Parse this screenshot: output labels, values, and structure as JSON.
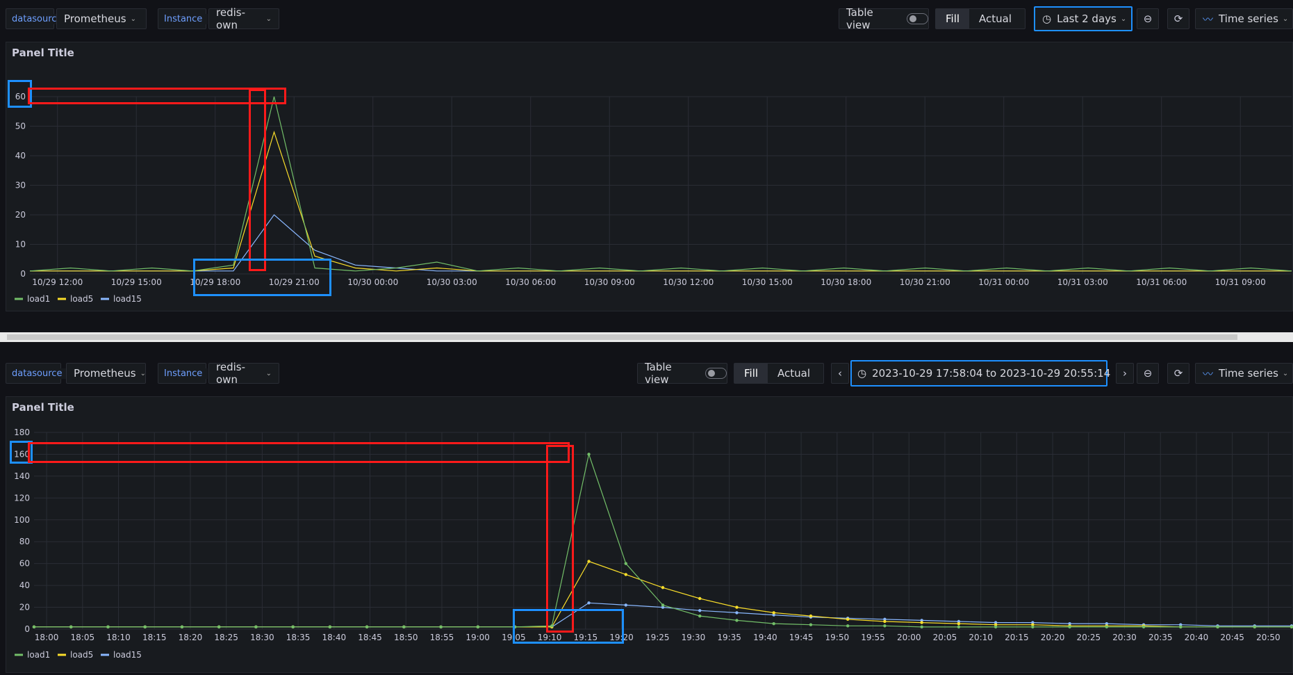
{
  "colors": {
    "load1": "#73bf69",
    "load5": "#fade2a",
    "load15": "#8ab8ff",
    "accent": "#6e9fff",
    "grid": "#2a2d35",
    "highlight_red": "#ff1a1a",
    "highlight_blue": "#1e90ff"
  },
  "top": {
    "datasource_label": "datasource",
    "datasource_value": "Prometheus",
    "instance_label": "Instance",
    "instance_value": "redis-own",
    "table_view": "Table view",
    "fill": "Fill",
    "actual": "Actual",
    "time_range": "Last 2 days",
    "viz": "Time series",
    "panel_title": "Panel Title",
    "legend": [
      "load1",
      "load5",
      "load15"
    ]
  },
  "bottom": {
    "datasource_label": "datasource",
    "datasource_value": "Prometheus",
    "instance_label": "Instance",
    "instance_value": "redis-own",
    "table_view": "Table view",
    "fill": "Fill",
    "actual": "Actual",
    "time_range": "2023-10-29 17:58:04 to 2023-10-29 20:55:14",
    "viz": "Time series",
    "panel_title": "Panel Title",
    "legend": [
      "load1",
      "load5",
      "load15"
    ]
  },
  "chart_data": [
    {
      "type": "line",
      "x_ticks": [
        "10/29 12:00",
        "10/29 15:00",
        "10/29 18:00",
        "10/29 21:00",
        "10/30 00:00",
        "10/30 03:00",
        "10/30 06:00",
        "10/30 09:00",
        "10/30 12:00",
        "10/30 15:00",
        "10/30 18:00",
        "10/30 21:00",
        "10/31 00:00",
        "10/31 03:00",
        "10/31 06:00",
        "10/31 09:00"
      ],
      "y_ticks": [
        0,
        10,
        20,
        30,
        40,
        50,
        60
      ],
      "ylim": [
        0,
        60
      ],
      "series": [
        {
          "name": "load1",
          "values": [
            1,
            2,
            1,
            2,
            1,
            3,
            60,
            2,
            1,
            2,
            4,
            1,
            2,
            1,
            2,
            1,
            2,
            1,
            2,
            1,
            2,
            1,
            2,
            1,
            2,
            1,
            2,
            1,
            2,
            1,
            2,
            1
          ]
        },
        {
          "name": "load5",
          "values": [
            1,
            1,
            1,
            1,
            1,
            2,
            48,
            6,
            2,
            1,
            2,
            1,
            1,
            1,
            1,
            1,
            1,
            1,
            1,
            1,
            1,
            1,
            1,
            1,
            1,
            1,
            1,
            1,
            1,
            1,
            1,
            1
          ]
        },
        {
          "name": "load15",
          "values": [
            1,
            1,
            1,
            1,
            1,
            1,
            20,
            8,
            3,
            2,
            1,
            1,
            1,
            1,
            1,
            1,
            1,
            1,
            1,
            1,
            1,
            1,
            1,
            1,
            1,
            1,
            1,
            1,
            1,
            1,
            1,
            1
          ]
        }
      ],
      "legend": "bottom-left"
    },
    {
      "type": "line",
      "x_ticks": [
        "18:00",
        "18:05",
        "18:10",
        "18:15",
        "18:20",
        "18:25",
        "18:30",
        "18:35",
        "18:40",
        "18:45",
        "18:50",
        "18:55",
        "19:00",
        "19:05",
        "19:10",
        "19:15",
        "19:20",
        "19:25",
        "19:30",
        "19:35",
        "19:40",
        "19:45",
        "19:50",
        "19:55",
        "20:00",
        "20:05",
        "20:10",
        "20:15",
        "20:20",
        "20:25",
        "20:30",
        "20:35",
        "20:40",
        "20:45",
        "20:50"
      ],
      "y_ticks": [
        0,
        20,
        40,
        60,
        80,
        100,
        120,
        140,
        160,
        180
      ],
      "ylim": [
        0,
        180
      ],
      "series": [
        {
          "name": "load1",
          "values": [
            2,
            2,
            2,
            2,
            2,
            2,
            2,
            2,
            2,
            2,
            2,
            2,
            2,
            2,
            3,
            160,
            60,
            22,
            12,
            8,
            5,
            4,
            3,
            3,
            2,
            2,
            2,
            2,
            2,
            2,
            2,
            2,
            2,
            2,
            2
          ]
        },
        {
          "name": "load5",
          "values": [
            2,
            2,
            2,
            2,
            2,
            2,
            2,
            2,
            2,
            2,
            2,
            2,
            2,
            2,
            2,
            62,
            50,
            38,
            28,
            20,
            15,
            12,
            9,
            7,
            6,
            5,
            4,
            4,
            3,
            3,
            3,
            2,
            2,
            2,
            2
          ]
        },
        {
          "name": "load15",
          "values": [
            2,
            2,
            2,
            2,
            2,
            2,
            2,
            2,
            2,
            2,
            2,
            2,
            2,
            2,
            2,
            24,
            22,
            20,
            17,
            15,
            13,
            11,
            10,
            9,
            8,
            7,
            6,
            6,
            5,
            5,
            4,
            4,
            3,
            3,
            3
          ]
        }
      ],
      "legend": "bottom-left"
    }
  ]
}
